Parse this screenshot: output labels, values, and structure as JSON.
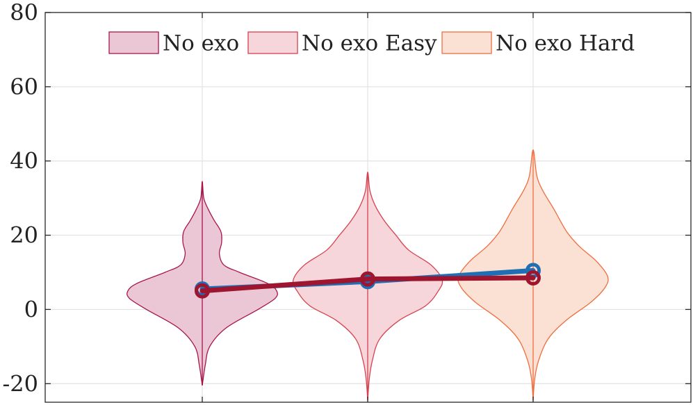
{
  "chart_data": {
    "type": "violin",
    "grid": true,
    "legend_placement": "top",
    "ylim": [
      -25,
      80
    ],
    "y_ticks": [
      {
        "value": 80,
        "label": "80"
      },
      {
        "value": 60,
        "label": "60"
      },
      {
        "value": 40,
        "label": "40"
      },
      {
        "value": 20,
        "label": "20"
      },
      {
        "value": 0,
        "label": "0"
      },
      {
        "value": -20,
        "label": "-20"
      }
    ],
    "violins": [
      {
        "name": "No exo",
        "face_color": "#ebc7d5",
        "edge_color": "#a6154b",
        "position": 1,
        "y_min": -20.5,
        "y_max": 34.5,
        "density_profile": [
          [
            -20.5,
            0.0
          ],
          [
            -15,
            0.04
          ],
          [
            -10,
            0.1
          ],
          [
            -5,
            0.32
          ],
          [
            0,
            0.75
          ],
          [
            3,
            0.98
          ],
          [
            5,
            1.0
          ],
          [
            7,
            0.88
          ],
          [
            10,
            0.5
          ],
          [
            12,
            0.29
          ],
          [
            15,
            0.23
          ],
          [
            18,
            0.26
          ],
          [
            21,
            0.25
          ],
          [
            24,
            0.16
          ],
          [
            27,
            0.08
          ],
          [
            30,
            0.02
          ],
          [
            34.5,
            0.0
          ]
        ]
      },
      {
        "name": "No exo Easy",
        "face_color": "#f6d6da",
        "edge_color": "#d7404f",
        "position": 2,
        "y_min": -24.5,
        "y_max": 37.0,
        "density_profile": [
          [
            -24.5,
            0.0
          ],
          [
            -19,
            0.02
          ],
          [
            -14,
            0.06
          ],
          [
            -8,
            0.16
          ],
          [
            -3,
            0.42
          ],
          [
            1,
            0.78
          ],
          [
            5,
            0.95
          ],
          [
            8,
            1.0
          ],
          [
            12,
            0.85
          ],
          [
            16,
            0.55
          ],
          [
            20,
            0.38
          ],
          [
            24,
            0.22
          ],
          [
            28,
            0.1
          ],
          [
            32,
            0.03
          ],
          [
            37,
            0.0
          ]
        ]
      },
      {
        "name": "No exo Hard",
        "face_color": "#fbe0d4",
        "edge_color": "#ee6e3f",
        "position": 3,
        "y_min": -24.5,
        "y_max": 43.0,
        "density_profile": [
          [
            -24.5,
            0.0
          ],
          [
            -19,
            0.02
          ],
          [
            -14,
            0.07
          ],
          [
            -8,
            0.2
          ],
          [
            -3,
            0.44
          ],
          [
            2,
            0.78
          ],
          [
            6,
            0.97
          ],
          [
            9,
            1.0
          ],
          [
            13,
            0.85
          ],
          [
            17,
            0.62
          ],
          [
            21,
            0.45
          ],
          [
            27,
            0.28
          ],
          [
            32,
            0.13
          ],
          [
            36,
            0.05
          ],
          [
            43,
            0.0
          ]
        ]
      }
    ],
    "series": [
      {
        "color": "#1e6fb4",
        "values": [
          5.5,
          7.5,
          10.5
        ]
      },
      {
        "color": "#9e1530",
        "values": [
          5.0,
          8.2,
          8.5
        ]
      }
    ]
  }
}
